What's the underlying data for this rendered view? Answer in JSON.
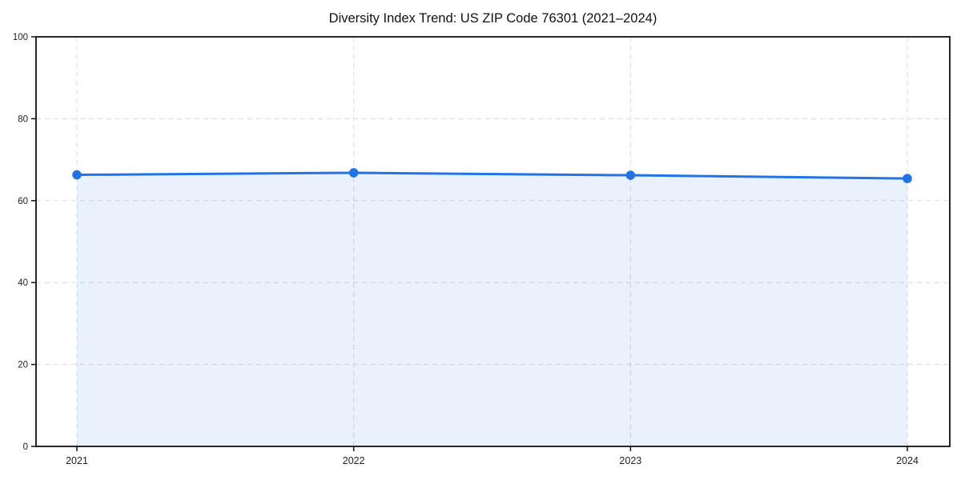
{
  "page": {
    "background": "#ffffff"
  },
  "chart_data": {
    "type": "area",
    "title": "Diversity Index Trend: US ZIP Code 76301 (2021–2024)",
    "x": [
      "2021",
      "2022",
      "2023",
      "2024"
    ],
    "series": [
      {
        "name": "Diversity Index",
        "values": [
          66.3,
          66.8,
          66.2,
          65.4
        ]
      }
    ],
    "xlabel": "",
    "ylabel": "",
    "ylim": [
      0,
      100
    ],
    "yticks": [
      0,
      20,
      40,
      60,
      80,
      100
    ],
    "grid": "dashed horizontal at 20/40/60/80 and dashed vertical at each year",
    "legend": "none",
    "colors": {
      "line": "#2273e6",
      "marker": "#2273e6",
      "area_fill": "#2273e6",
      "area_fill_opacity": "0.10",
      "gridline": "#d9d9d9",
      "axis_frame": "#111111",
      "tick": "#111111",
      "tick_label": "#222222",
      "title": "#111111"
    }
  }
}
